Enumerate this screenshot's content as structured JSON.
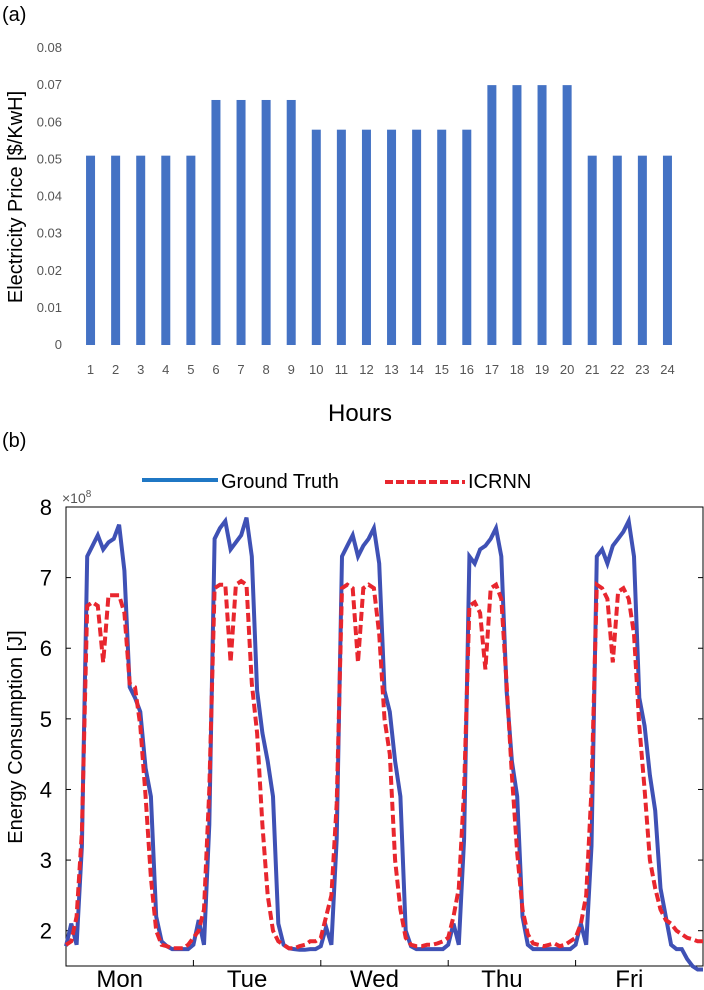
{
  "panels": [
    {
      "label": "(a)",
      "chart_data": {
        "type": "bar",
        "title": "",
        "xlabel": "Hours",
        "ylabel": "Electricity Price [$/KwH]",
        "ylim": [
          0,
          0.08
        ],
        "yticks": [
          "0",
          "0.01",
          "0.02",
          "0.03",
          "0.04",
          "0.05",
          "0.06",
          "0.07",
          "0.08"
        ],
        "categories": [
          "1",
          "2",
          "3",
          "4",
          "5",
          "6",
          "7",
          "8",
          "9",
          "10",
          "11",
          "12",
          "13",
          "14",
          "15",
          "16",
          "17",
          "18",
          "19",
          "20",
          "21",
          "22",
          "23",
          "24"
        ],
        "values": [
          0.051,
          0.051,
          0.051,
          0.051,
          0.051,
          0.066,
          0.066,
          0.066,
          0.066,
          0.058,
          0.058,
          0.058,
          0.058,
          0.058,
          0.058,
          0.058,
          0.07,
          0.07,
          0.07,
          0.07,
          0.051,
          0.051,
          0.051,
          0.051
        ],
        "color": "#4472c4",
        "grid": false
      }
    },
    {
      "label": "(b)",
      "chart_data": {
        "type": "line",
        "title": "",
        "xlabel": "",
        "ylabel": "Energy Consumption [J]",
        "y_multiplier": "×10",
        "y_multiplier_exp": "8",
        "ylim": [
          1.5,
          8
        ],
        "yticks": [
          "2",
          "3",
          "4",
          "5",
          "6",
          "7",
          "8"
        ],
        "xlim": [
          0,
          120
        ],
        "xtick_labels": [
          "Mon",
          "Tue",
          "Wed",
          "Thu",
          "Fri"
        ],
        "legend_position": "top-outside",
        "grid": false,
        "series": [
          {
            "name": "Ground Truth",
            "color": "#3f51b5",
            "style": "solid",
            "values": [
              1.78,
              2.1,
              1.8,
              3.2,
              7.3,
              7.45,
              7.6,
              7.4,
              7.5,
              7.55,
              7.75,
              7.1,
              5.45,
              5.3,
              5.1,
              4.3,
              3.9,
              2.2,
              1.85,
              1.78,
              1.74,
              1.74,
              1.74,
              1.74,
              1.8,
              2.15,
              1.8,
              3.5,
              7.55,
              7.7,
              7.8,
              7.4,
              7.5,
              7.6,
              7.85,
              7.3,
              5.4,
              4.8,
              4.4,
              3.9,
              2.1,
              1.8,
              1.75,
              1.74,
              1.73,
              1.73,
              1.74,
              1.74,
              1.78,
              2.05,
              1.8,
              3.3,
              7.3,
              7.45,
              7.6,
              7.3,
              7.45,
              7.55,
              7.7,
              7.2,
              5.4,
              5.1,
              4.4,
              3.9,
              2.0,
              1.78,
              1.74,
              1.74,
              1.74,
              1.74,
              1.74,
              1.74,
              1.8,
              2.1,
              1.8,
              3.3,
              7.3,
              7.2,
              7.4,
              7.45,
              7.55,
              7.7,
              7.3,
              5.4,
              4.4,
              3.9,
              2.2,
              1.8,
              1.74,
              1.74,
              1.74,
              1.74,
              1.74,
              1.74,
              1.74,
              1.74,
              1.8,
              2.1,
              1.8,
              3.2,
              7.3,
              7.4,
              7.2,
              7.45,
              7.55,
              7.65,
              7.8,
              7.3,
              5.3,
              4.9,
              4.2,
              3.7,
              2.6,
              2.2,
              1.8,
              1.74,
              1.74,
              1.6,
              1.5,
              1.45,
              1.45
            ]
          },
          {
            "name": "ICRNN",
            "color": "#e8262e",
            "style": "dashed",
            "values": [
              1.8,
              1.85,
              2.2,
              3.4,
              6.6,
              6.65,
              6.6,
              5.8,
              6.75,
              6.75,
              6.75,
              6.5,
              5.5,
              5.45,
              4.9,
              3.9,
              2.75,
              2.0,
              1.8,
              1.78,
              1.75,
              1.75,
              1.75,
              1.8,
              1.9,
              2.0,
              2.3,
              4.0,
              6.85,
              6.9,
              6.9,
              5.8,
              6.9,
              6.95,
              6.9,
              5.5,
              4.8,
              3.5,
              2.5,
              2.0,
              1.85,
              1.8,
              1.75,
              1.75,
              1.78,
              1.8,
              1.85,
              1.85,
              1.9,
              2.2,
              2.5,
              3.8,
              6.85,
              6.9,
              6.85,
              5.8,
              6.85,
              6.9,
              6.85,
              6.2,
              5.0,
              4.5,
              3.0,
              2.3,
              1.9,
              1.8,
              1.78,
              1.78,
              1.8,
              1.8,
              1.82,
              1.85,
              1.9,
              2.2,
              2.6,
              4.0,
              6.6,
              6.65,
              6.5,
              5.7,
              6.85,
              6.9,
              6.7,
              5.5,
              4.2,
              3.1,
              2.3,
              1.95,
              1.82,
              1.8,
              1.78,
              1.8,
              1.82,
              1.78,
              1.8,
              1.85,
              1.9,
              2.1,
              2.5,
              4.0,
              6.9,
              6.85,
              6.7,
              5.8,
              6.8,
              6.85,
              6.7,
              6.2,
              4.9,
              4.0,
              3.0,
              2.6,
              2.3,
              2.15,
              2.1,
              2.0,
              1.95,
              1.9,
              1.88,
              1.85,
              1.85
            ]
          }
        ]
      }
    }
  ]
}
